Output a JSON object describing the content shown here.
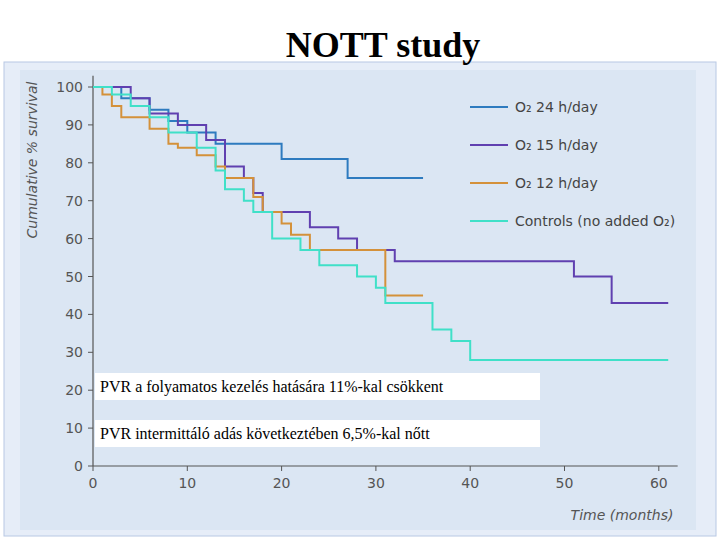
{
  "chart_data": {
    "type": "line",
    "title": "NOTT  study",
    "x_label": "Time (months)",
    "y_label": "Cumulative % survival",
    "line_style": "step",
    "legend": "upper right",
    "grid": false,
    "xlim": [
      0,
      62
    ],
    "xticks": [
      0,
      10,
      20,
      30,
      40,
      50,
      60
    ],
    "ylim": [
      0,
      103
    ],
    "yticks": [
      0,
      10,
      20,
      30,
      40,
      50,
      60,
      70,
      80,
      90,
      100
    ],
    "series": [
      {
        "name": "O₂ 24 h/day",
        "color": "#2e7bbf",
        "x": [
          0,
          3,
          6,
          8,
          10,
          13,
          20,
          27,
          35
        ],
        "values": [
          100,
          97,
          94,
          91,
          88,
          85,
          81,
          76,
          76
        ]
      },
      {
        "name": "O₂ 15 h/day",
        "color": "#6040b0",
        "x": [
          0,
          4,
          6,
          9,
          12,
          14,
          16,
          17,
          18,
          21,
          23,
          26,
          28,
          30,
          32,
          50,
          51,
          53,
          55,
          61
        ],
        "values": [
          100,
          97,
          93,
          90,
          86,
          79,
          76,
          72,
          67,
          67,
          63,
          60,
          57,
          57,
          54,
          54,
          50,
          50,
          43,
          43
        ]
      },
      {
        "name": "O₂ 12 h/day",
        "color": "#d4913a",
        "x": [
          0,
          1,
          2,
          3,
          6,
          8,
          9,
          11,
          13,
          14,
          17,
          18,
          20,
          21,
          23,
          30,
          31,
          35
        ],
        "values": [
          100,
          98,
          95,
          92,
          89,
          85,
          84,
          82,
          79,
          76,
          71,
          67,
          64,
          61,
          57,
          57,
          45,
          45
        ]
      },
      {
        "name": "Controls (no added O₂)",
        "color": "#40e0c8",
        "x": [
          0,
          2,
          4,
          6,
          8,
          11,
          13,
          14,
          16,
          17,
          19,
          22,
          24,
          28,
          30,
          31,
          35,
          36,
          38,
          40,
          61
        ],
        "values": [
          100,
          98,
          95,
          92,
          88,
          84,
          78,
          73,
          70,
          67,
          60,
          57,
          53,
          50,
          47,
          43,
          43,
          36,
          33,
          28,
          28
        ]
      }
    ],
    "annotations": [
      "PVR a folyamatos kezelés hatására 11%-kal csökkent",
      "PVR intermittáló adás következtében 6,5%-kal nőtt"
    ]
  }
}
